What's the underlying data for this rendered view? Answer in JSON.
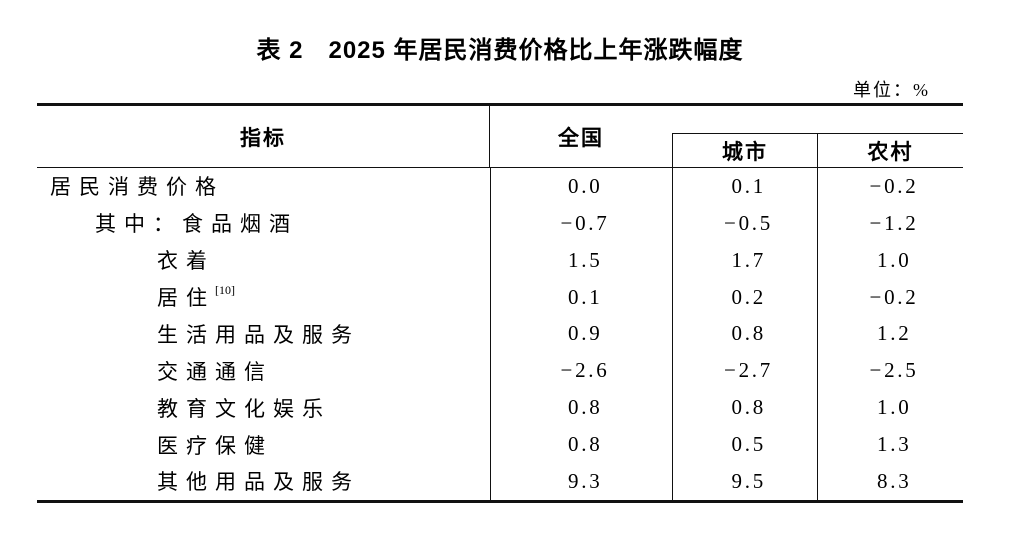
{
  "page": {
    "title": "表 2　2025 年居民消费价格比上年涨跌幅度",
    "unit_label": "单位：%"
  },
  "table": {
    "columns": {
      "indicator": "指标",
      "national": "全国",
      "city": "城市",
      "rural": "农村"
    },
    "rows": [
      {
        "label": "居民消费价格",
        "indent": 0,
        "national": "0.0",
        "city": "0.1",
        "rural": "-0.2"
      },
      {
        "label": "其中：食品烟酒",
        "indent": 1,
        "national": "-0.7",
        "city": "-0.5",
        "rural": "-1.2"
      },
      {
        "label": "衣着",
        "indent": 2,
        "national": "1.5",
        "city": "1.7",
        "rural": "1.0"
      },
      {
        "label": "居住",
        "note": "[10]",
        "indent": 2,
        "national": "0.1",
        "city": "0.2",
        "rural": "-0.2"
      },
      {
        "label": "生活用品及服务",
        "indent": 2,
        "national": "0.9",
        "city": "0.8",
        "rural": "1.2"
      },
      {
        "label": "交通通信",
        "indent": 2,
        "national": "-2.6",
        "city": "-2.7",
        "rural": "-2.5"
      },
      {
        "label": "教育文化娱乐",
        "indent": 2,
        "national": "0.8",
        "city": "0.8",
        "rural": "1.0"
      },
      {
        "label": "医疗保健",
        "indent": 2,
        "national": "0.8",
        "city": "0.5",
        "rural": "1.3"
      },
      {
        "label": "其他用品及服务",
        "indent": 2,
        "national": "9.3",
        "city": "9.5",
        "rural": "8.3"
      }
    ]
  },
  "colors": {
    "background": "#ffffff",
    "text": "#000000",
    "line": "#111111"
  }
}
